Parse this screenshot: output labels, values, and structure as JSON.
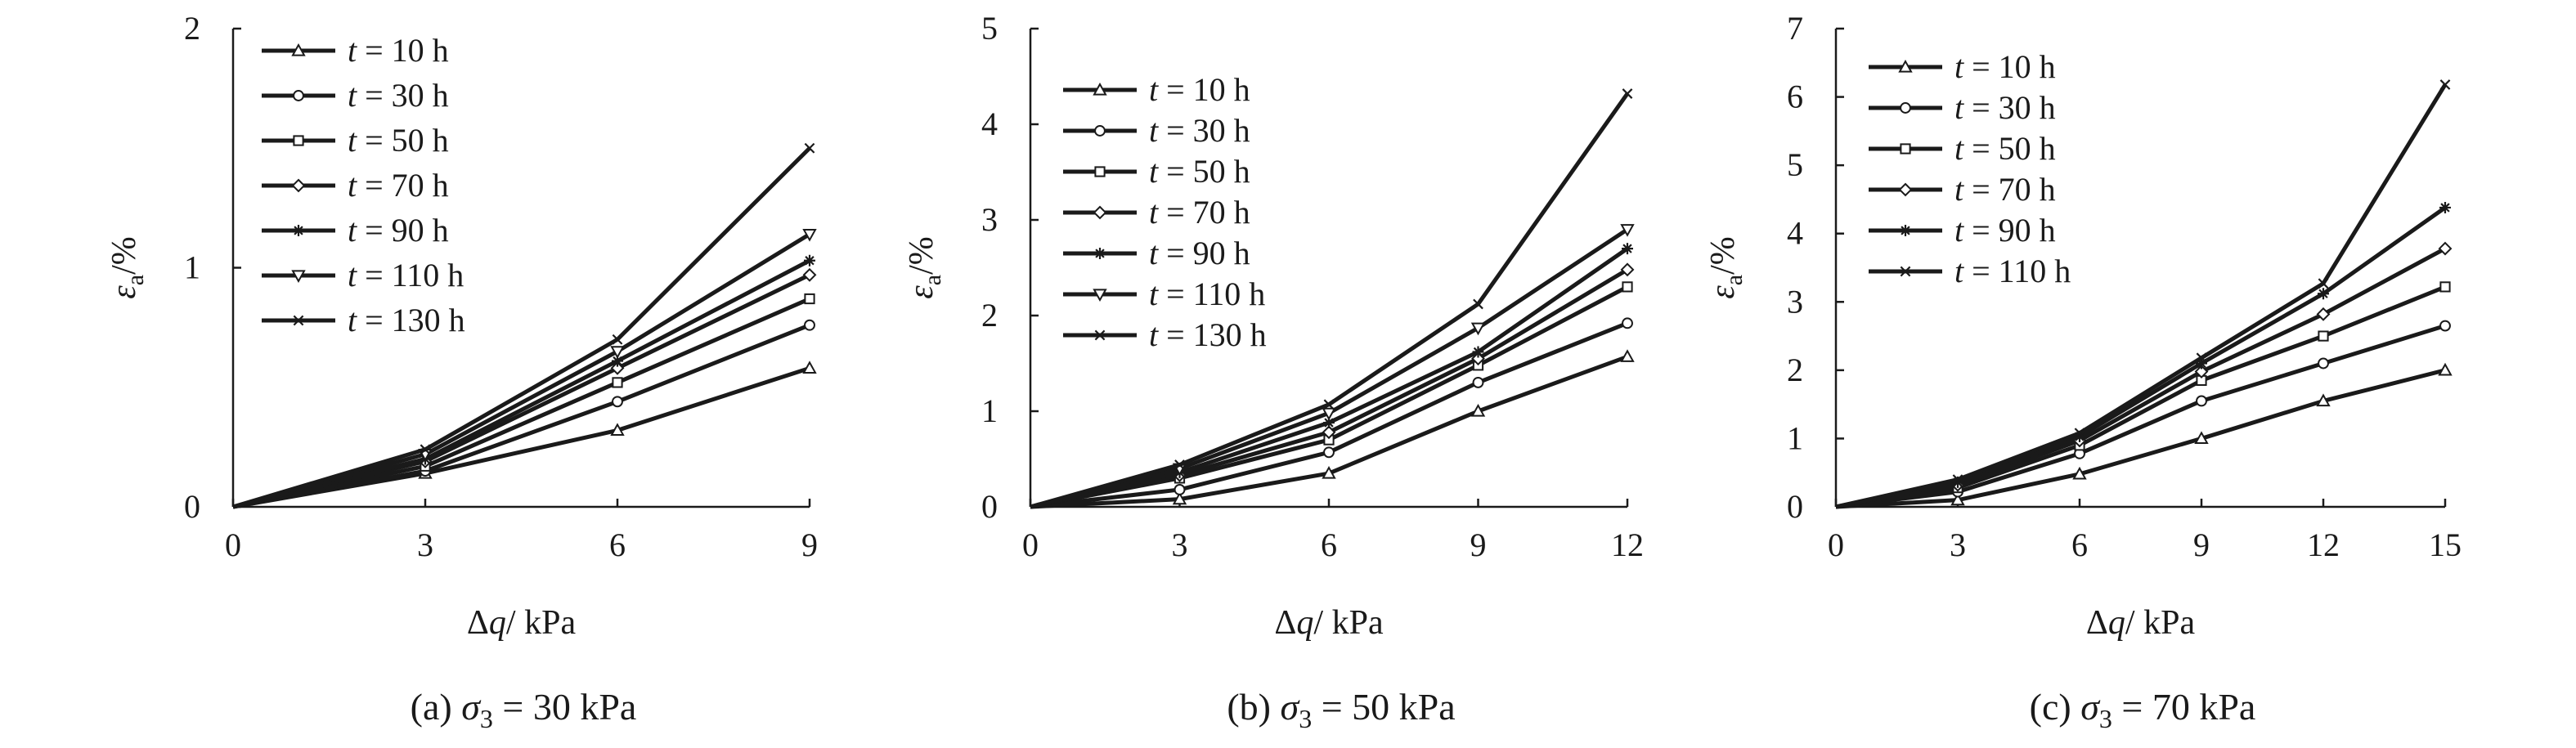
{
  "chart_data": [
    {
      "type": "line",
      "caption": {
        "prefix": "(a) ",
        "symbol": "σ",
        "sub": "3",
        "suffix": " = 30 kPa"
      },
      "xlabel": {
        "delta": "Δ",
        "var": "q",
        "unit": "/ kPa"
      },
      "ylabel": {
        "sym": "ε",
        "sub": "a",
        "unit": "/%"
      },
      "x": [
        0,
        3,
        6,
        9
      ],
      "xticks": [
        "0",
        "3",
        "6",
        "9"
      ],
      "xlim": [
        0,
        9
      ],
      "ylim": [
        0,
        2
      ],
      "yticks": [
        "0",
        "1",
        "2"
      ],
      "legend_position": "top-left",
      "series": [
        {
          "name": "t = 10 h",
          "t_var": "t",
          "t_rest": " = 10 h",
          "marker": "triangle",
          "values": [
            0,
            0.14,
            0.32,
            0.58
          ]
        },
        {
          "name": "t = 30 h",
          "t_var": "t",
          "t_rest": " = 30 h",
          "marker": "circle",
          "values": [
            0,
            0.15,
            0.44,
            0.76
          ]
        },
        {
          "name": "t = 50 h",
          "t_var": "t",
          "t_rest": " = 50 h",
          "marker": "square",
          "values": [
            0,
            0.17,
            0.52,
            0.87
          ]
        },
        {
          "name": "t = 70 h",
          "t_var": "t",
          "t_rest": " = 70 h",
          "marker": "diamond",
          "values": [
            0,
            0.19,
            0.58,
            0.97
          ]
        },
        {
          "name": "t = 90 h",
          "t_var": "t",
          "t_rest": " = 90 h",
          "marker": "star",
          "values": [
            0,
            0.2,
            0.61,
            1.03
          ]
        },
        {
          "name": "t = 110 h",
          "t_var": "t",
          "t_rest": " = 110 h",
          "marker": "triangle-down",
          "values": [
            0,
            0.22,
            0.65,
            1.14
          ]
        },
        {
          "name": "t = 130 h",
          "t_var": "t",
          "t_rest": " = 130 h",
          "marker": "x",
          "values": [
            0,
            0.24,
            0.7,
            1.5
          ]
        }
      ]
    },
    {
      "type": "line",
      "caption": {
        "prefix": "(b) ",
        "symbol": "σ",
        "sub": "3",
        "suffix": " = 50 kPa"
      },
      "xlabel": {
        "delta": "Δ",
        "var": "q",
        "unit": "/ kPa"
      },
      "ylabel": {
        "sym": "ε",
        "sub": "a",
        "unit": "/%"
      },
      "x": [
        0,
        3,
        6,
        9,
        12
      ],
      "xticks": [
        "0",
        "3",
        "6",
        "9",
        "12"
      ],
      "xlim": [
        0,
        12
      ],
      "ylim": [
        0,
        5
      ],
      "yticks": [
        "0",
        "1",
        "2",
        "3",
        "4",
        "5"
      ],
      "legend_position": "top-left",
      "series": [
        {
          "name": "t = 10 h",
          "t_var": "t",
          "t_rest": " = 10 h",
          "marker": "triangle",
          "values": [
            0,
            0.08,
            0.35,
            1.0,
            1.57
          ]
        },
        {
          "name": "t = 30 h",
          "t_var": "t",
          "t_rest": " = 30 h",
          "marker": "circle",
          "values": [
            0,
            0.18,
            0.57,
            1.3,
            1.92
          ]
        },
        {
          "name": "t = 50 h",
          "t_var": "t",
          "t_rest": " = 50 h",
          "marker": "square",
          "values": [
            0,
            0.3,
            0.7,
            1.48,
            2.3
          ]
        },
        {
          "name": "t = 70 h",
          "t_var": "t",
          "t_rest": " = 70 h",
          "marker": "diamond",
          "values": [
            0,
            0.33,
            0.78,
            1.55,
            2.48
          ]
        },
        {
          "name": "t = 90 h",
          "t_var": "t",
          "t_rest": " = 90 h",
          "marker": "star",
          "values": [
            0,
            0.36,
            0.88,
            1.62,
            2.7
          ]
        },
        {
          "name": "t = 110 h",
          "t_var": "t",
          "t_rest": " = 110 h",
          "marker": "triangle-down",
          "values": [
            0,
            0.4,
            0.98,
            1.87,
            2.9
          ]
        },
        {
          "name": "t = 130 h",
          "t_var": "t",
          "t_rest": " = 130 h",
          "marker": "x",
          "values": [
            0,
            0.44,
            1.07,
            2.12,
            4.32
          ]
        }
      ]
    },
    {
      "type": "line",
      "caption": {
        "prefix": "(c) ",
        "symbol": "σ",
        "sub": "3",
        "suffix": " = 70 kPa"
      },
      "xlabel": {
        "delta": "Δ",
        "var": "q",
        "unit": "/ kPa"
      },
      "ylabel": {
        "sym": "ε",
        "sub": "a",
        "unit": "/%"
      },
      "x": [
        0,
        3,
        6,
        9,
        12,
        15
      ],
      "xticks": [
        "0",
        "3",
        "6",
        "9",
        "12",
        "15"
      ],
      "xlim": [
        0,
        15
      ],
      "ylim": [
        0,
        7
      ],
      "yticks": [
        "0",
        "1",
        "2",
        "3",
        "4",
        "5",
        "6",
        "7"
      ],
      "legend_position": "top-left",
      "series": [
        {
          "name": "t = 10 h",
          "t_var": "t",
          "t_rest": " = 10 h",
          "marker": "triangle",
          "values": [
            0,
            0.1,
            0.48,
            1.0,
            1.55,
            2.0
          ]
        },
        {
          "name": "t = 30 h",
          "t_var": "t",
          "t_rest": " = 30 h",
          "marker": "circle",
          "values": [
            0,
            0.22,
            0.78,
            1.55,
            2.1,
            2.65
          ]
        },
        {
          "name": "t = 50 h",
          "t_var": "t",
          "t_rest": " = 50 h",
          "marker": "square",
          "values": [
            0,
            0.28,
            0.9,
            1.85,
            2.5,
            3.22
          ]
        },
        {
          "name": "t = 70 h",
          "t_var": "t",
          "t_rest": " = 70 h",
          "marker": "diamond",
          "values": [
            0,
            0.32,
            0.97,
            1.98,
            2.82,
            3.78
          ]
        },
        {
          "name": "t = 90 h",
          "t_var": "t",
          "t_rest": " = 90 h",
          "marker": "star",
          "values": [
            0,
            0.36,
            1.03,
            2.1,
            3.12,
            4.38
          ]
        },
        {
          "name": "t = 110 h",
          "t_var": "t",
          "t_rest": " = 110 h",
          "marker": "x",
          "values": [
            0,
            0.4,
            1.08,
            2.18,
            3.27,
            6.18
          ]
        }
      ]
    }
  ]
}
